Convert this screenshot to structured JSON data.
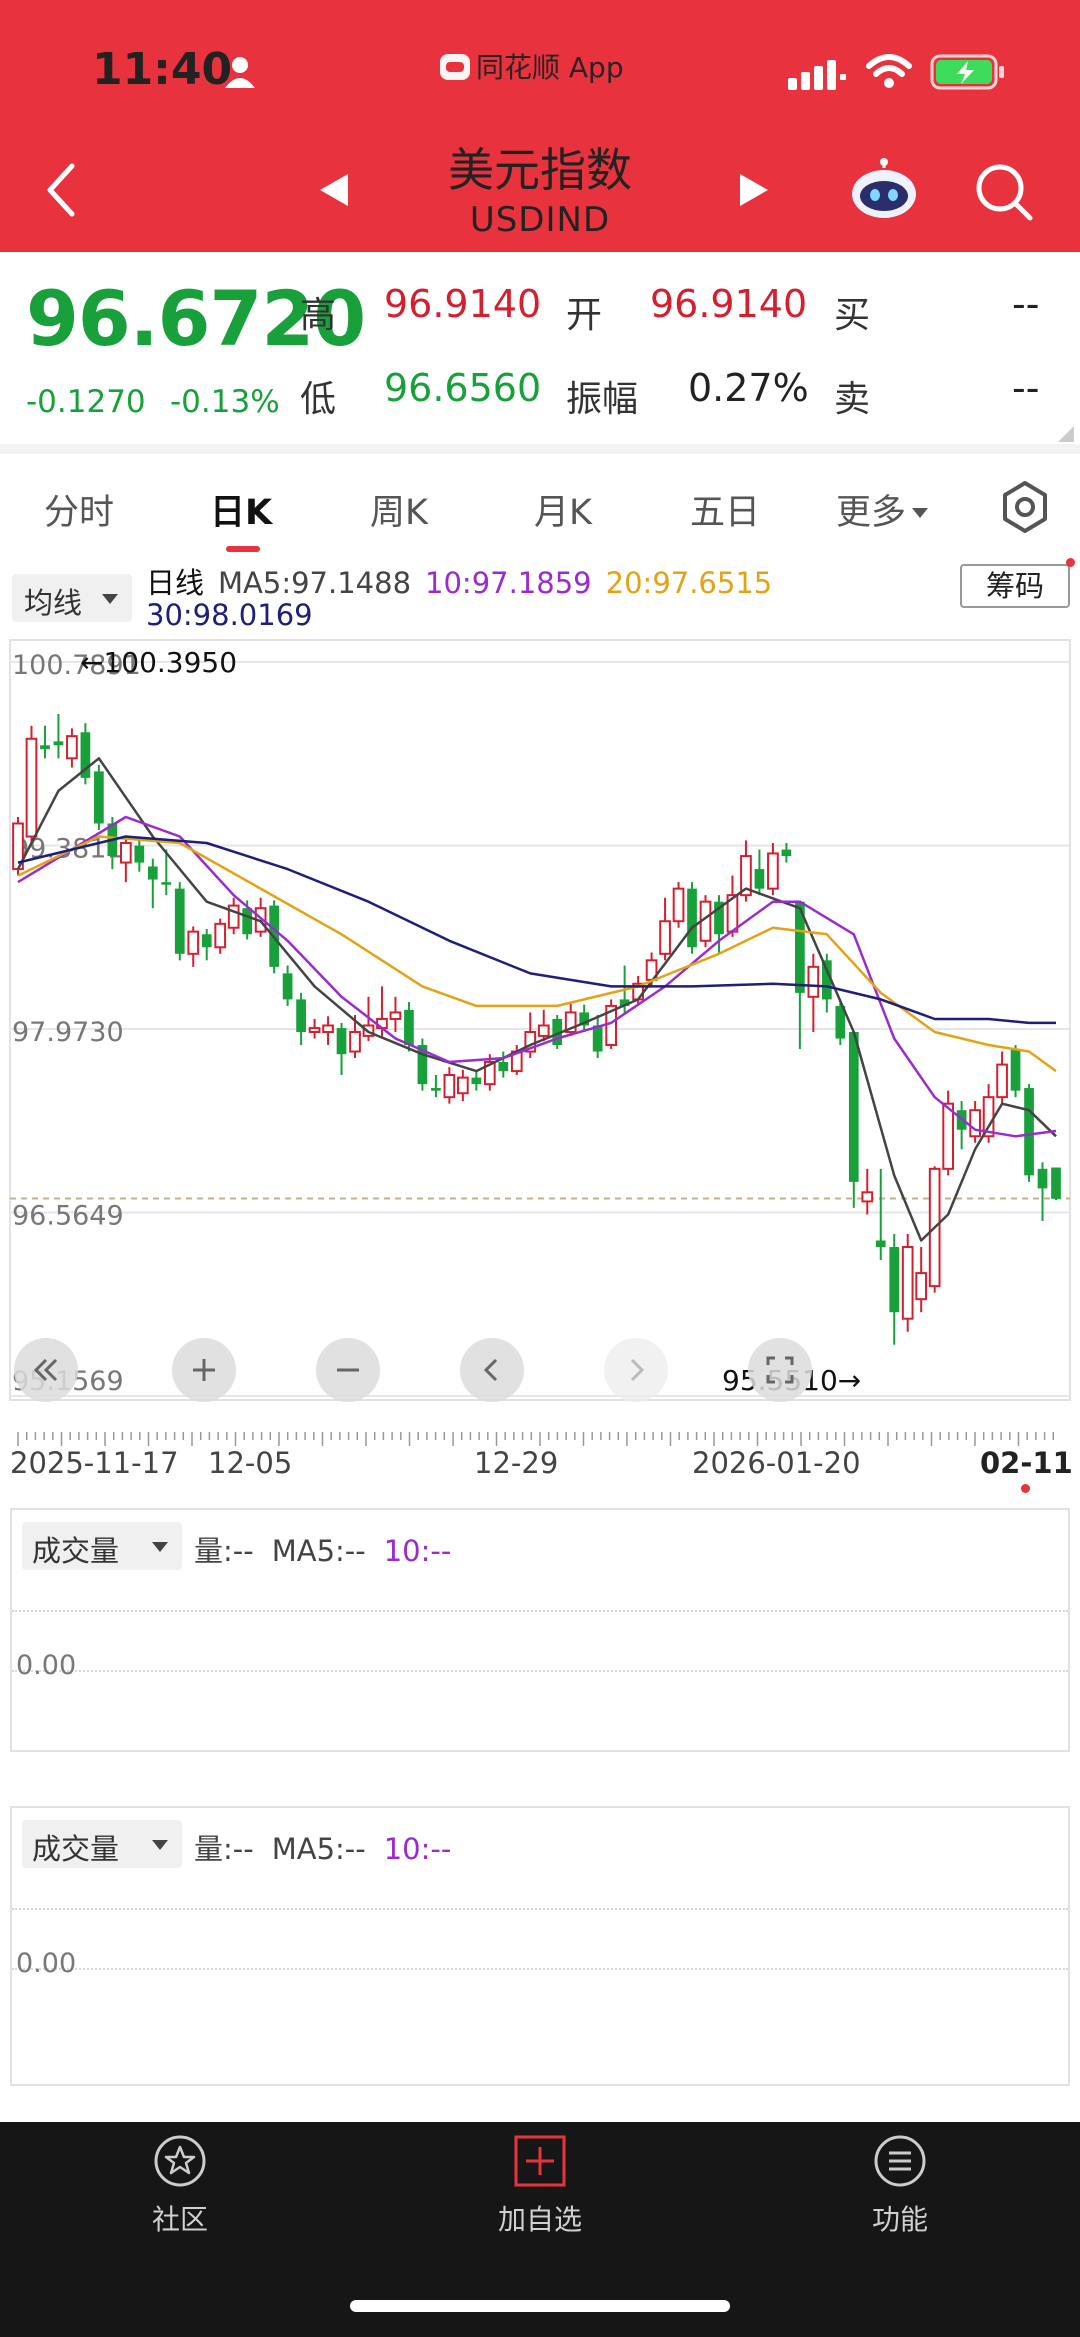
{
  "status_bar": {
    "time": "11:40",
    "app_label": "同花顺 App",
    "icons": [
      "person-icon",
      "signal-icon",
      "wifi-icon",
      "battery-charging-icon"
    ]
  },
  "nav": {
    "title": "美元指数",
    "subtitle": "USDIND",
    "icons": [
      "back-icon",
      "prev-icon",
      "next-icon",
      "robot-icon",
      "search-icon"
    ]
  },
  "quote": {
    "price": "96.6720",
    "change": "-0.1270",
    "change_pct": "-0.13%",
    "high_label": "高",
    "high": "96.9140",
    "open_label": "开",
    "open": "96.9140",
    "buy_label": "买",
    "buy": "--",
    "low_label": "低",
    "low": "96.6560",
    "amp_label": "振幅",
    "amplitude": "0.27%",
    "sell_label": "卖",
    "sell": "--"
  },
  "tabs": [
    {
      "label": "分时"
    },
    {
      "label": "日K",
      "active": true
    },
    {
      "label": "周K"
    },
    {
      "label": "月K"
    },
    {
      "label": "五日"
    },
    {
      "label": "更多"
    }
  ],
  "chart": {
    "indicator_select": "均线",
    "chip_button": "筹码",
    "legend": {
      "period": "日线",
      "ma5": "MA5:97.1488",
      "ma10": "10:97.1859",
      "ma20": "20:97.6515",
      "ma30": "30:98.0169"
    },
    "colors": {
      "up": "#d2202f",
      "down": "#18a03a",
      "ma5": "#444444",
      "ma10": "#9a2bd1",
      "ma20": "#e3a316",
      "ma30": "#1d1f78"
    },
    "y_labels": [
      "100.7891",
      "99.3811",
      "97.9730",
      "96.5649",
      "95.1569"
    ],
    "max_marker": "←100.3950",
    "min_marker": "95.5510→",
    "x_labels": [
      "2025-11-17",
      "12-05",
      "12-29",
      "2026-01-20",
      "02-11"
    ],
    "controls": [
      "rewind-icon",
      "zoom-in-icon",
      "zoom-out-icon",
      "scroll-left-icon",
      "scroll-right-icon",
      "fullscreen-icon"
    ]
  },
  "chart_data": {
    "type": "candlestick",
    "y_range": [
      95.1569,
      100.7891
    ],
    "last_price": 96.672,
    "candles": [
      {
        "o": 99.2,
        "c": 99.55,
        "h": 99.6,
        "l": 99.15
      },
      {
        "o": 99.45,
        "c": 100.2,
        "h": 100.3,
        "l": 99.4
      },
      {
        "o": 100.15,
        "c": 100.12,
        "h": 100.3,
        "l": 100.05
      },
      {
        "o": 100.18,
        "c": 100.15,
        "h": 100.39,
        "l": 100.05
      },
      {
        "o": 100.05,
        "c": 100.22,
        "h": 100.28,
        "l": 99.98
      },
      {
        "o": 100.25,
        "c": 99.9,
        "h": 100.32,
        "l": 99.85
      },
      {
        "o": 99.95,
        "c": 99.55,
        "h": 100.0,
        "l": 99.5
      },
      {
        "o": 99.55,
        "c": 99.3,
        "h": 99.6,
        "l": 99.2
      },
      {
        "o": 99.25,
        "c": 99.4,
        "h": 99.45,
        "l": 99.1
      },
      {
        "o": 99.38,
        "c": 99.25,
        "h": 99.42,
        "l": 99.18
      },
      {
        "o": 99.22,
        "c": 99.12,
        "h": 99.28,
        "l": 98.9
      },
      {
        "o": 99.1,
        "c": 99.08,
        "h": 99.35,
        "l": 99.0
      },
      {
        "o": 99.05,
        "c": 98.55,
        "h": 99.1,
        "l": 98.5
      },
      {
        "o": 98.55,
        "c": 98.72,
        "h": 98.76,
        "l": 98.45
      },
      {
        "o": 98.7,
        "c": 98.6,
        "h": 98.74,
        "l": 98.5
      },
      {
        "o": 98.6,
        "c": 98.78,
        "h": 98.82,
        "l": 98.55
      },
      {
        "o": 98.75,
        "c": 98.92,
        "h": 98.98,
        "l": 98.7
      },
      {
        "o": 98.9,
        "c": 98.7,
        "h": 98.96,
        "l": 98.66
      },
      {
        "o": 98.72,
        "c": 98.9,
        "h": 98.98,
        "l": 98.68
      },
      {
        "o": 98.92,
        "c": 98.45,
        "h": 98.96,
        "l": 98.4
      },
      {
        "o": 98.4,
        "c": 98.2,
        "h": 98.46,
        "l": 98.15
      },
      {
        "o": 98.2,
        "c": 97.95,
        "h": 98.25,
        "l": 97.85
      },
      {
        "o": 97.95,
        "c": 97.98,
        "h": 98.05,
        "l": 97.9
      },
      {
        "o": 97.95,
        "c": 98.0,
        "h": 98.07,
        "l": 97.85
      },
      {
        "o": 97.98,
        "c": 97.78,
        "h": 98.02,
        "l": 97.62
      },
      {
        "o": 97.8,
        "c": 97.95,
        "h": 98.08,
        "l": 97.75
      },
      {
        "o": 97.92,
        "c": 98.0,
        "h": 98.22,
        "l": 97.88
      },
      {
        "o": 97.98,
        "c": 98.05,
        "h": 98.3,
        "l": 97.9
      },
      {
        "o": 98.05,
        "c": 98.1,
        "h": 98.22,
        "l": 97.95
      },
      {
        "o": 98.12,
        "c": 97.85,
        "h": 98.18,
        "l": 97.8
      },
      {
        "o": 97.85,
        "c": 97.55,
        "h": 97.9,
        "l": 97.5
      },
      {
        "o": 97.52,
        "c": 97.5,
        "h": 97.62,
        "l": 97.45
      },
      {
        "o": 97.45,
        "c": 97.62,
        "h": 97.68,
        "l": 97.4
      },
      {
        "o": 97.48,
        "c": 97.6,
        "h": 97.66,
        "l": 97.42
      },
      {
        "o": 97.6,
        "c": 97.55,
        "h": 97.66,
        "l": 97.5
      },
      {
        "o": 97.55,
        "c": 97.72,
        "h": 97.78,
        "l": 97.5
      },
      {
        "o": 97.72,
        "c": 97.65,
        "h": 97.8,
        "l": 97.6
      },
      {
        "o": 97.65,
        "c": 97.8,
        "h": 97.85,
        "l": 97.62
      },
      {
        "o": 97.8,
        "c": 97.95,
        "h": 98.1,
        "l": 97.75
      },
      {
        "o": 97.92,
        "c": 98.0,
        "h": 98.12,
        "l": 97.88
      },
      {
        "o": 98.05,
        "c": 97.85,
        "h": 98.08,
        "l": 97.82
      },
      {
        "o": 97.95,
        "c": 98.1,
        "h": 98.18,
        "l": 97.92
      },
      {
        "o": 98.1,
        "c": 98.0,
        "h": 98.16,
        "l": 97.95
      },
      {
        "o": 98.0,
        "c": 97.8,
        "h": 98.08,
        "l": 97.75
      },
      {
        "o": 97.85,
        "c": 98.15,
        "h": 98.2,
        "l": 97.82
      },
      {
        "o": 98.2,
        "c": 98.15,
        "h": 98.46,
        "l": 98.1
      },
      {
        "o": 98.2,
        "c": 98.32,
        "h": 98.38,
        "l": 98.15
      },
      {
        "o": 98.35,
        "c": 98.5,
        "h": 98.56,
        "l": 98.3
      },
      {
        "o": 98.55,
        "c": 98.8,
        "h": 98.98,
        "l": 98.5
      },
      {
        "o": 98.8,
        "c": 99.05,
        "h": 99.1,
        "l": 98.75
      },
      {
        "o": 99.05,
        "c": 98.6,
        "h": 99.1,
        "l": 98.55
      },
      {
        "o": 98.65,
        "c": 98.95,
        "h": 99.0,
        "l": 98.6
      },
      {
        "o": 98.95,
        "c": 98.7,
        "h": 99.0,
        "l": 98.55
      },
      {
        "o": 98.72,
        "c": 99.0,
        "h": 99.15,
        "l": 98.68
      },
      {
        "o": 99.0,
        "c": 99.3,
        "h": 99.42,
        "l": 98.95
      },
      {
        "o": 99.2,
        "c": 99.05,
        "h": 99.35,
        "l": 99.0
      },
      {
        "o": 99.05,
        "c": 99.32,
        "h": 99.4,
        "l": 99.0
      },
      {
        "o": 99.35,
        "c": 99.3,
        "h": 99.4,
        "l": 99.25
      },
      {
        "o": 98.95,
        "c": 98.25,
        "h": 98.95,
        "l": 97.82
      },
      {
        "o": 98.22,
        "c": 98.45,
        "h": 98.55,
        "l": 97.95
      },
      {
        "o": 98.5,
        "c": 98.2,
        "h": 98.55,
        "l": 98.1
      },
      {
        "o": 98.15,
        "c": 97.9,
        "h": 98.2,
        "l": 97.85
      },
      {
        "o": 97.95,
        "c": 96.8,
        "h": 97.95,
        "l": 96.6
      },
      {
        "o": 96.65,
        "c": 96.72,
        "h": 96.9,
        "l": 96.55
      },
      {
        "o": 96.35,
        "c": 96.3,
        "h": 96.9,
        "l": 96.2
      },
      {
        "o": 96.3,
        "c": 95.8,
        "h": 96.4,
        "l": 95.55
      },
      {
        "o": 95.75,
        "c": 96.3,
        "h": 96.4,
        "l": 95.65
      },
      {
        "o": 95.9,
        "c": 96.1,
        "h": 96.3,
        "l": 95.8
      },
      {
        "o": 96.0,
        "c": 96.9,
        "h": 96.92,
        "l": 95.95
      },
      {
        "o": 96.9,
        "c": 97.4,
        "h": 97.5,
        "l": 96.85
      },
      {
        "o": 97.35,
        "c": 97.2,
        "h": 97.42,
        "l": 97.05
      },
      {
        "o": 97.15,
        "c": 97.35,
        "h": 97.42,
        "l": 97.1
      },
      {
        "o": 97.15,
        "c": 97.45,
        "h": 97.55,
        "l": 97.1
      },
      {
        "o": 97.45,
        "c": 97.7,
        "h": 97.8,
        "l": 97.4
      },
      {
        "o": 97.82,
        "c": 97.5,
        "h": 97.85,
        "l": 97.45
      },
      {
        "o": 97.52,
        "c": 96.85,
        "h": 97.55,
        "l": 96.8
      },
      {
        "o": 96.9,
        "c": 96.75,
        "h": 96.95,
        "l": 96.5
      },
      {
        "o": 96.91,
        "c": 96.67,
        "h": 96.91,
        "l": 96.66
      }
    ],
    "ma": [
      {
        "name": "MA5",
        "color": "#444444",
        "points": [
          [
            0,
            99.2
          ],
          [
            3,
            99.8
          ],
          [
            6,
            100.05
          ],
          [
            10,
            99.45
          ],
          [
            14,
            98.95
          ],
          [
            18,
            98.8
          ],
          [
            22,
            98.3
          ],
          [
            26,
            97.95
          ],
          [
            30,
            97.78
          ],
          [
            34,
            97.65
          ],
          [
            38,
            97.85
          ],
          [
            42,
            98.02
          ],
          [
            46,
            98.2
          ],
          [
            50,
            98.75
          ],
          [
            54,
            99.05
          ],
          [
            58,
            98.9
          ],
          [
            62,
            97.95
          ],
          [
            65,
            96.85
          ],
          [
            67,
            96.35
          ],
          [
            69,
            96.55
          ],
          [
            71,
            97.05
          ],
          [
            73,
            97.4
          ],
          [
            75,
            97.35
          ],
          [
            77,
            97.15
          ]
        ]
      },
      {
        "name": "MA10",
        "color": "#9a2bd1",
        "points": [
          [
            0,
            99.1
          ],
          [
            4,
            99.35
          ],
          [
            8,
            99.6
          ],
          [
            12,
            99.45
          ],
          [
            16,
            99.0
          ],
          [
            20,
            98.65
          ],
          [
            24,
            98.22
          ],
          [
            28,
            97.9
          ],
          [
            32,
            97.72
          ],
          [
            36,
            97.75
          ],
          [
            40,
            97.9
          ],
          [
            44,
            98.02
          ],
          [
            48,
            98.3
          ],
          [
            52,
            98.65
          ],
          [
            56,
            98.95
          ],
          [
            58,
            98.95
          ],
          [
            62,
            98.7
          ],
          [
            65,
            97.9
          ],
          [
            68,
            97.45
          ],
          [
            71,
            97.2
          ],
          [
            74,
            97.15
          ],
          [
            77,
            97.19
          ]
        ]
      },
      {
        "name": "MA20",
        "color": "#e3a316",
        "points": [
          [
            0,
            99.15
          ],
          [
            6,
            99.45
          ],
          [
            12,
            99.4
          ],
          [
            18,
            99.05
          ],
          [
            24,
            98.7
          ],
          [
            30,
            98.3
          ],
          [
            34,
            98.15
          ],
          [
            40,
            98.15
          ],
          [
            46,
            98.3
          ],
          [
            52,
            98.55
          ],
          [
            56,
            98.75
          ],
          [
            60,
            98.7
          ],
          [
            64,
            98.25
          ],
          [
            68,
            97.95
          ],
          [
            72,
            97.85
          ],
          [
            75,
            97.8
          ],
          [
            77,
            97.65
          ]
        ]
      },
      {
        "name": "MA30",
        "color": "#1d1f78",
        "points": [
          [
            0,
            99.25
          ],
          [
            8,
            99.45
          ],
          [
            14,
            99.4
          ],
          [
            20,
            99.2
          ],
          [
            26,
            98.95
          ],
          [
            32,
            98.65
          ],
          [
            38,
            98.4
          ],
          [
            44,
            98.3
          ],
          [
            50,
            98.3
          ],
          [
            56,
            98.32
          ],
          [
            60,
            98.3
          ],
          [
            64,
            98.2
          ],
          [
            68,
            98.05
          ],
          [
            72,
            98.05
          ],
          [
            75,
            98.02
          ],
          [
            77,
            98.02
          ]
        ]
      }
    ]
  },
  "volume_panels": [
    {
      "select": "成交量",
      "vol": "量:--",
      "ma5": "MA5:--",
      "ma10": "10:--",
      "zero": "0.00"
    },
    {
      "select": "成交量",
      "vol": "量:--",
      "ma5": "MA5:--",
      "ma10": "10:--",
      "zero": "0.00"
    }
  ],
  "bottom_nav": [
    {
      "label": "社区",
      "icon": "community-icon"
    },
    {
      "label": "加自选",
      "icon": "add-watchlist-icon"
    },
    {
      "label": "功能",
      "icon": "menu-icon"
    }
  ]
}
